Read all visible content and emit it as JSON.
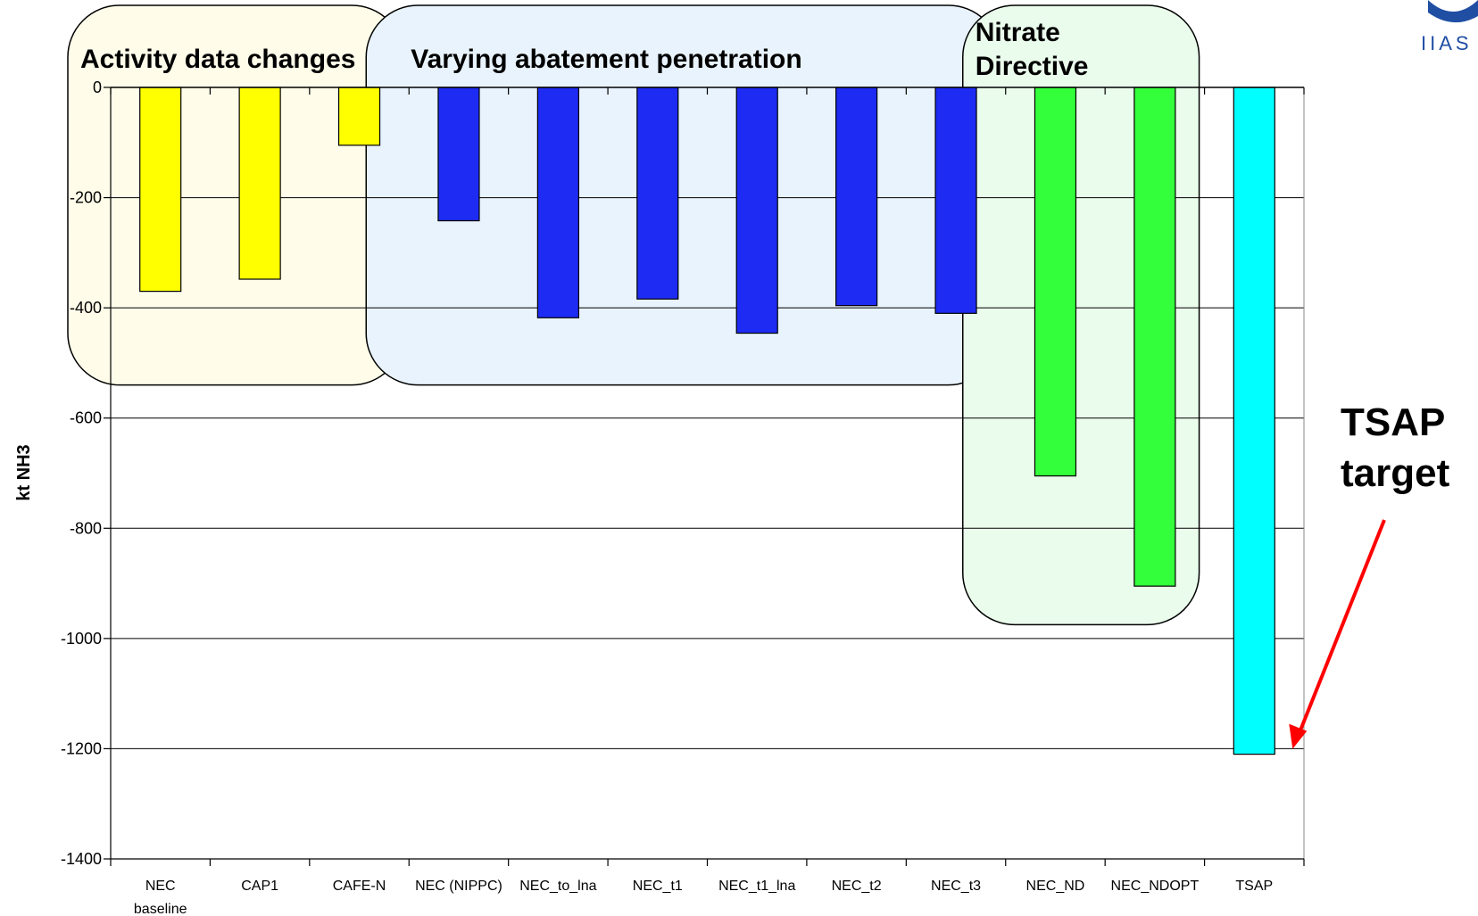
{
  "chart_data": {
    "type": "bar",
    "ylabel": "kt NH3",
    "ylim": [
      -1400,
      0
    ],
    "yticks": [
      0,
      -200,
      -400,
      -600,
      -800,
      -1000,
      -1200,
      -1400
    ],
    "grid": true,
    "categories": [
      [
        "NEC",
        "baseline"
      ],
      [
        "CAP1"
      ],
      [
        "CAFE-N"
      ],
      [
        "NEC (NIPPC)"
      ],
      [
        "NEC_to_lna"
      ],
      [
        "NEC_t1"
      ],
      [
        "NEC_t1_lna"
      ],
      [
        "NEC_t2"
      ],
      [
        "NEC_t3"
      ],
      [
        "NEC_ND"
      ],
      [
        "NEC_NDOPT"
      ],
      [
        "TSAP"
      ]
    ],
    "values": [
      -370,
      -348,
      -105,
      -242,
      -418,
      -384,
      -446,
      -396,
      -410,
      -705,
      -905,
      -1210
    ],
    "bar_colors": [
      "#ffff00",
      "#ffff00",
      "#ffff00",
      "#1e2bf2",
      "#1e2bf2",
      "#1e2bf2",
      "#1e2bf2",
      "#1e2bf2",
      "#1e2bf2",
      "#33ff3a",
      "#33ff3a",
      "#00ffff"
    ],
    "groups": [
      {
        "label": [
          "Activity data changes"
        ],
        "bars": [
          0,
          2
        ],
        "fill": "#fffdea",
        "ybottom": -540
      },
      {
        "label": [
          "Varying abatement penetration"
        ],
        "bars": [
          3,
          8
        ],
        "fill": "#e8f3fd",
        "ybottom": -540
      },
      {
        "label": [
          "Nitrate",
          "Directive"
        ],
        "bars": [
          9,
          10
        ],
        "fill": "#eafcec",
        "ybottom": -975
      }
    ],
    "annotation": {
      "text": [
        "TSAP",
        "target"
      ],
      "arrow_color": "#ff0000",
      "points_to_bar": 11
    }
  },
  "logo": {
    "text": "IIAS"
  }
}
